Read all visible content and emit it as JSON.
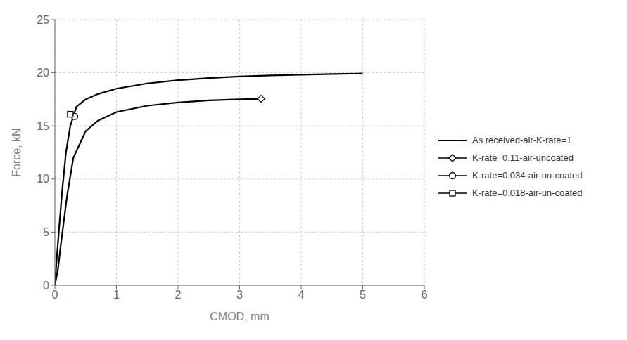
{
  "chart_data": {
    "type": "line",
    "xlabel": "CMOD, mm",
    "ylabel": "Force, kN",
    "xlim": [
      0,
      6
    ],
    "ylim": [
      0,
      25
    ],
    "xticks": [
      0,
      1,
      2,
      3,
      4,
      5,
      6
    ],
    "yticks": [
      0,
      5,
      10,
      15,
      20,
      25
    ],
    "grid": true,
    "legend": "right",
    "series": [
      {
        "name": "As received-air-K-rate=1",
        "type": "line",
        "color": "#000000",
        "x": [
          0.0,
          0.03,
          0.07,
          0.12,
          0.18,
          0.25,
          0.35,
          0.5,
          0.7,
          1.0,
          1.5,
          2.0,
          2.5,
          3.0,
          3.5,
          4.0,
          4.5,
          5.0
        ],
        "values": [
          0.0,
          2.5,
          5.5,
          9.0,
          12.5,
          15.0,
          16.8,
          17.5,
          18.0,
          18.5,
          19.0,
          19.3,
          19.5,
          19.65,
          19.75,
          19.82,
          19.88,
          19.93
        ]
      },
      {
        "type": "line",
        "color": "#000000",
        "x": [
          0.0,
          0.05,
          0.1,
          0.2,
          0.3,
          0.5,
          0.7,
          1.0,
          1.5,
          2.0,
          2.5,
          3.0,
          3.35
        ],
        "values": [
          0.0,
          1.5,
          4.0,
          8.5,
          12.0,
          14.5,
          15.5,
          16.3,
          16.9,
          17.2,
          17.4,
          17.5,
          17.55
        ]
      },
      {
        "name": "K-rate=0.11-air-uncoated",
        "type": "scatter",
        "marker": "diamond",
        "color": "#000000",
        "x": [
          3.35
        ],
        "values": [
          17.55
        ]
      },
      {
        "name": "K-rate=0.034-air-un-coated",
        "type": "scatter",
        "marker": "circle",
        "color": "#000000",
        "x": [
          0.32
        ],
        "values": [
          15.9
        ]
      },
      {
        "name": "K-rate=0.018-air-un-coated",
        "type": "scatter",
        "marker": "square",
        "color": "#000000",
        "x": [
          0.25
        ],
        "values": [
          16.1
        ]
      }
    ]
  }
}
